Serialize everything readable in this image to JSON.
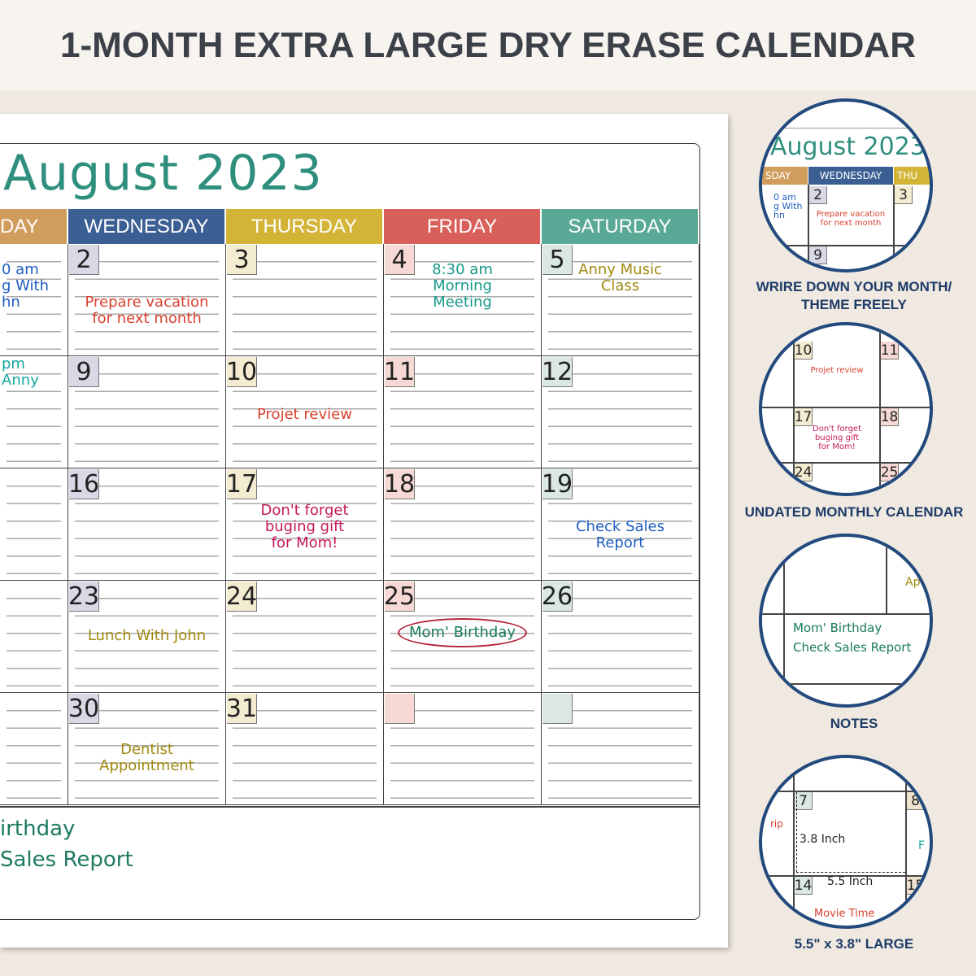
{
  "title": "1-MONTH EXTRA LARGE DRY ERASE CALENDAR",
  "calendar": {
    "month": "August 2023",
    "columns": [
      {
        "label": "DAY",
        "color": "#d19d5d",
        "box": "#efe3cf"
      },
      {
        "label": "WEDNESDAY",
        "color": "#3b5f93",
        "box": "#d9d9e5"
      },
      {
        "label": "THURSDAY",
        "color": "#d3b436",
        "box": "#f3ecd0"
      },
      {
        "label": "FRIDAY",
        "color": "#d9605a",
        "box": "#f6d9d5"
      },
      {
        "label": "SATURDAY",
        "color": "#5aa896",
        "box": "#dae7e4"
      }
    ],
    "weeks": [
      [
        {
          "date": "",
          "notes": [
            "0 am",
            "g With",
            "hn"
          ],
          "color": "#1f5fbf"
        },
        {
          "date": "2",
          "notes": [
            "Prepare vacation",
            "for next month"
          ],
          "color": "#d8402f"
        },
        {
          "date": "3",
          "notes": []
        },
        {
          "date": "4",
          "notes": [
            "8:30 am",
            "Morning",
            "Meeting"
          ],
          "color": "#17998a"
        },
        {
          "date": "5",
          "notes": [
            "Anny Music",
            "Class"
          ],
          "color": "#a08a12"
        }
      ],
      [
        {
          "date": "",
          "notes": [
            "pm",
            "Anny"
          ],
          "color": "#16a89e"
        },
        {
          "date": "9",
          "notes": []
        },
        {
          "date": "10",
          "notes": [
            "Projet review"
          ],
          "color": "#d8402f"
        },
        {
          "date": "11",
          "notes": []
        },
        {
          "date": "12",
          "notes": []
        }
      ],
      [
        {
          "date": "",
          "notes": []
        },
        {
          "date": "16",
          "notes": []
        },
        {
          "date": "17",
          "notes": [
            "Don't forget",
            "buging gift",
            "for Mom!"
          ],
          "color": "#c4185a"
        },
        {
          "date": "18",
          "notes": []
        },
        {
          "date": "19",
          "notes": [
            "Check Sales",
            "Report"
          ],
          "color": "#1f5fbf"
        }
      ],
      [
        {
          "date": "",
          "notes": []
        },
        {
          "date": "23",
          "notes": [
            "Lunch With John"
          ],
          "color": "#a08a12"
        },
        {
          "date": "24",
          "notes": []
        },
        {
          "date": "25",
          "notes": [
            "Mom' Birthday"
          ],
          "color": "#1a7a5a",
          "circled": true
        },
        {
          "date": "26",
          "notes": []
        }
      ],
      [
        {
          "date": "",
          "notes": []
        },
        {
          "date": "30",
          "notes": [
            "Dentist",
            "Appointment"
          ],
          "color": "#a08a12"
        },
        {
          "date": "31",
          "notes": []
        },
        {
          "date": "",
          "notes": [],
          "box": true
        },
        {
          "date": "",
          "notes": [],
          "box": true
        }
      ]
    ],
    "notes": [
      "irthday",
      "Sales Report"
    ]
  },
  "features": [
    {
      "caption_lines": [
        "WRIRE DOWN YOUR MONTH/",
        "THEME FREELY"
      ],
      "month": "August 2023",
      "headers": [
        "SDAY",
        "WEDNESDAY",
        "THU"
      ],
      "dates": [
        "2",
        "3",
        "9"
      ],
      "left_notes": [
        "0 am",
        "g With",
        "hn"
      ],
      "notes": [
        "Prepare vacation",
        "for next month"
      ]
    },
    {
      "caption_lines": [
        "UNDATED MONTHLY CALENDAR"
      ],
      "dates": [
        "10",
        "11",
        "17",
        "18",
        "24",
        "25"
      ],
      "note1": "Projet review",
      "note2": [
        "Don't forget",
        "buging gift",
        "for Mom!"
      ]
    },
    {
      "caption_lines": [
        "NOTES"
      ],
      "fragment": "Ap",
      "notes": [
        "Mom' Birthday",
        "Check Sales Report"
      ]
    },
    {
      "caption_lines": [
        "5.5\" x 3.8\" LARGE"
      ],
      "dates": [
        "7",
        "8",
        "14",
        "15"
      ],
      "height_label": "3.8 Inch",
      "width_label": "5.5 Inch",
      "fragment_left": "rip",
      "fragment_right": "F",
      "movie": "Movie Time"
    }
  ]
}
